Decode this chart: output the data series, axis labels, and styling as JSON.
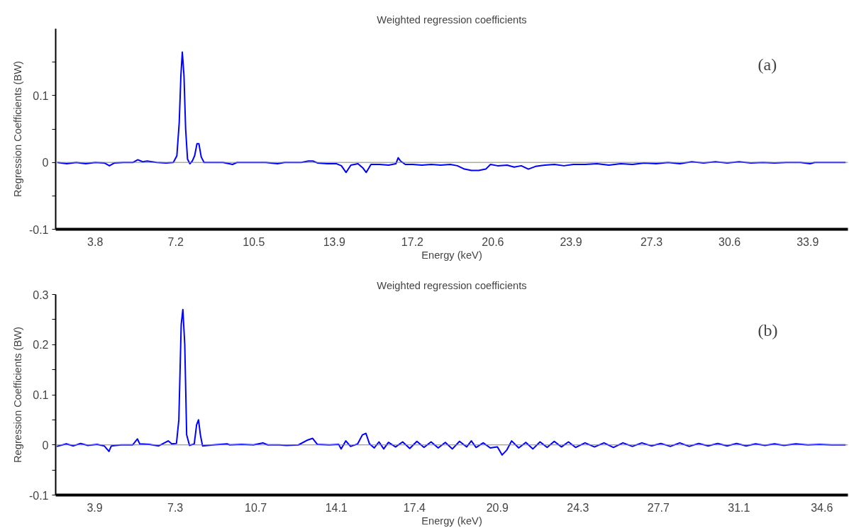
{
  "chart_data": [
    {
      "type": "line",
      "title": "Weighted regression coefficients",
      "xlabel": "Energy (keV)",
      "ylabel": "Regression Coefficients (BW)",
      "annotations": [
        "(a)"
      ],
      "xlim": [
        2.13,
        35.6
      ],
      "xticks": [
        3.8,
        7.2,
        10.5,
        13.9,
        17.2,
        20.6,
        23.9,
        27.3,
        30.6,
        33.9
      ],
      "ylim": [
        -0.1,
        0.2
      ],
      "yticks": [
        -0.1,
        {
          "value": -0.05,
          "label": null
        },
        0,
        {
          "value": 0.05,
          "label": null
        },
        0.1,
        {
          "value": 0.15,
          "label": null
        }
      ],
      "grid": false,
      "marker": "none",
      "line_style": "solid",
      "ref_lines": [
        {
          "axis": "y",
          "value": 0,
          "label": null,
          "color": "#808080"
        }
      ],
      "series": [
        {
          "color": "#0000ff",
          "x": [
            2.2,
            2.6,
            3.0,
            3.4,
            3.8,
            4.2,
            4.4,
            4.6,
            5.0,
            5.4,
            5.6,
            5.8,
            6.0,
            6.4,
            6.8,
            7.1,
            7.25,
            7.35,
            7.42,
            7.48,
            7.55,
            7.62,
            7.7,
            7.8,
            7.9,
            8.0,
            8.1,
            8.18,
            8.28,
            8.4,
            8.8,
            9.2,
            9.6,
            9.8,
            10.4,
            11.0,
            11.5,
            11.8,
            12.5,
            12.8,
            13.0,
            13.2,
            13.6,
            14.0,
            14.2,
            14.4,
            14.6,
            14.9,
            15.1,
            15.25,
            15.45,
            15.8,
            16.2,
            16.5,
            16.6,
            16.7,
            16.9,
            17.2,
            17.6,
            18.0,
            18.4,
            18.8,
            19.1,
            19.4,
            19.7,
            20.0,
            20.3,
            20.5,
            20.8,
            21.2,
            21.5,
            21.8,
            22.1,
            22.4,
            22.8,
            23.2,
            23.6,
            24.0,
            24.5,
            25.0,
            25.5,
            26.0,
            26.5,
            27.0,
            27.5,
            28.0,
            28.5,
            29.0,
            29.5,
            30.0,
            30.5,
            31.0,
            31.5,
            32.0,
            32.5,
            33.0,
            33.6,
            34.0,
            34.2,
            35.0,
            35.5
          ],
          "values": [
            0,
            -0.002,
            0,
            -0.002,
            0,
            -0.001,
            -0.005,
            -0.001,
            0,
            0,
            0.004,
            0.001,
            0.002,
            0,
            -0.001,
            0,
            0.01,
            0.06,
            0.13,
            0.165,
            0.13,
            0.05,
            0.005,
            -0.002,
            0.002,
            0.01,
            0.028,
            0.028,
            0.008,
            0,
            0,
            0,
            -0.003,
            0,
            0,
            0,
            -0.002,
            0,
            0,
            0.002,
            0.002,
            -0.001,
            -0.002,
            -0.002,
            -0.005,
            -0.015,
            -0.004,
            -0.002,
            -0.008,
            -0.015,
            -0.003,
            -0.003,
            -0.004,
            -0.002,
            0.007,
            0.002,
            -0.003,
            -0.003,
            -0.004,
            -0.003,
            -0.004,
            -0.003,
            -0.005,
            -0.01,
            -0.012,
            -0.012,
            -0.01,
            -0.003,
            -0.005,
            -0.004,
            -0.007,
            -0.005,
            -0.01,
            -0.006,
            -0.004,
            -0.003,
            -0.005,
            -0.003,
            -0.003,
            -0.002,
            -0.004,
            -0.002,
            -0.003,
            -0.001,
            -0.002,
            0,
            -0.002,
            0.001,
            -0.001,
            0.001,
            -0.001,
            0.001,
            -0.001,
            0,
            -0.001,
            0,
            0,
            -0.002,
            0,
            0,
            0
          ]
        }
      ]
    },
    {
      "type": "line",
      "title": "Weighted regression coefficients",
      "xlabel": "Energy (keV)",
      "ylabel": "Regression Coefficients (BW)",
      "annotations": [
        "(b)"
      ],
      "xlim": [
        2.25,
        35.7
      ],
      "xticks": [
        3.9,
        7.3,
        10.7,
        14.1,
        17.4,
        20.9,
        24.3,
        27.7,
        31.1,
        34.6
      ],
      "ylim": [
        -0.1,
        0.3
      ],
      "yticks": [
        -0.1,
        {
          "value": -0.05,
          "label": null
        },
        0,
        {
          "value": 0.05,
          "label": null
        },
        0.1,
        {
          "value": 0.15,
          "label": null
        },
        0.2,
        {
          "value": 0.25,
          "label": null
        },
        0.3
      ],
      "grid": false,
      "marker": "none",
      "line_style": "solid",
      "ref_lines": [
        {
          "axis": "y",
          "value": 0,
          "label": null,
          "color": "#808080"
        }
      ],
      "series": [
        {
          "color": "#0000ff",
          "x": [
            2.3,
            2.7,
            3.0,
            3.3,
            3.6,
            4.0,
            4.3,
            4.5,
            4.6,
            5.0,
            5.5,
            5.7,
            5.8,
            6.2,
            6.6,
            7.0,
            7.15,
            7.35,
            7.45,
            7.55,
            7.62,
            7.7,
            7.78,
            7.9,
            8.1,
            8.2,
            8.28,
            8.36,
            8.45,
            8.9,
            9.5,
            9.6,
            10.1,
            10.6,
            11.0,
            11.2,
            11.7,
            12.0,
            12.5,
            12.9,
            13.1,
            13.3,
            13.8,
            14.2,
            14.3,
            14.5,
            14.7,
            15.0,
            15.2,
            15.35,
            15.5,
            15.7,
            15.9,
            16.1,
            16.3,
            16.6,
            16.9,
            17.2,
            17.5,
            17.8,
            18.1,
            18.4,
            18.7,
            19.0,
            19.3,
            19.6,
            19.8,
            20.0,
            20.3,
            20.6,
            20.9,
            21.1,
            21.3,
            21.5,
            21.8,
            22.1,
            22.4,
            22.7,
            23.0,
            23.3,
            23.6,
            23.9,
            24.2,
            24.6,
            25.0,
            25.4,
            25.8,
            26.2,
            26.6,
            27.0,
            27.4,
            27.8,
            28.2,
            28.6,
            29.0,
            29.4,
            29.8,
            30.2,
            30.6,
            31.0,
            31.4,
            31.8,
            32.2,
            32.6,
            33.0,
            33.5,
            34.0,
            34.5,
            35.0,
            35.6
          ],
          "values": [
            -0.003,
            0.002,
            -0.002,
            0.003,
            -0.001,
            0.001,
            -0.002,
            -0.013,
            -0.002,
            0,
            0,
            0.012,
            0.002,
            0.001,
            -0.002,
            0.008,
            0.002,
            0.003,
            0.05,
            0.24,
            0.27,
            0.2,
            0.02,
            -0.001,
            0.002,
            0.04,
            0.05,
            0.02,
            -0.002,
            0,
            0.002,
            0,
            0.001,
            0,
            0.004,
            0,
            0,
            -0.001,
            0,
            0.01,
            0.013,
            0.001,
            0,
            0.001,
            -0.008,
            0.008,
            -0.003,
            0.002,
            0.02,
            0.023,
            0.002,
            -0.006,
            0.006,
            -0.008,
            0.005,
            -0.004,
            0.006,
            -0.007,
            0.007,
            -0.005,
            0.006,
            -0.006,
            0.005,
            -0.008,
            0.007,
            -0.004,
            0.008,
            -0.005,
            0.004,
            -0.006,
            -0.004,
            -0.02,
            -0.01,
            0.008,
            -0.006,
            0.005,
            -0.008,
            0.006,
            -0.005,
            0.007,
            -0.004,
            0.006,
            -0.005,
            0.004,
            -0.004,
            0.004,
            -0.005,
            0.004,
            -0.003,
            0.004,
            -0.002,
            0.003,
            -0.003,
            0.004,
            -0.003,
            0.003,
            -0.002,
            0.003,
            -0.002,
            0.003,
            -0.002,
            0.002,
            -0.001,
            0.002,
            -0.001,
            0.002,
            0,
            0.001,
            0,
            0
          ]
        }
      ]
    }
  ]
}
